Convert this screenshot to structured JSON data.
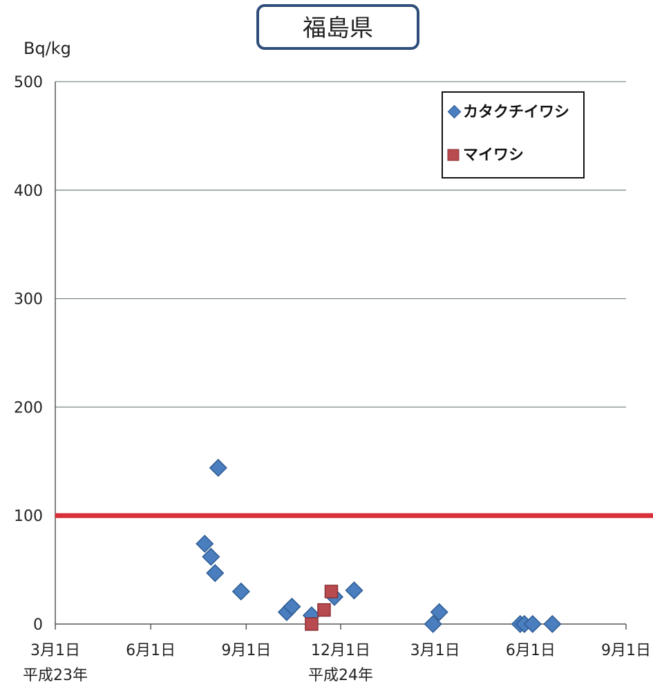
{
  "chart_data": {
    "type": "scatter",
    "title": "福島県",
    "ylabel": "Bq/kg",
    "xlabel": "",
    "ylim": [
      0,
      500
    ],
    "xlim": [
      "2011-03-01",
      "2012-09-01"
    ],
    "y_ticks": [
      "0",
      "100",
      "200",
      "300",
      "400",
      "500"
    ],
    "x_ticks": [
      {
        "date": "2011-03-01",
        "label": "3月1日"
      },
      {
        "date": "2011-06-01",
        "label": "6月1日"
      },
      {
        "date": "2011-09-01",
        "label": "9月1日"
      },
      {
        "date": "2011-12-01",
        "label": "12月1日"
      },
      {
        "date": "2012-03-01",
        "label": "3月1日"
      },
      {
        "date": "2012-06-01",
        "label": "6月1日"
      },
      {
        "date": "2012-09-01",
        "label": "9月1日"
      }
    ],
    "era_labels": [
      {
        "date": "2011-03-01",
        "label": "平成23年"
      },
      {
        "date": "2011-12-01",
        "label": "平成24年"
      }
    ],
    "grid": true,
    "legend_position": "top-right",
    "reference_line": {
      "y": 100,
      "color": "#d9303a"
    },
    "series": [
      {
        "name": "カタクチイワシ",
        "marker": "diamond",
        "color": "#4a7ebf",
        "points": [
          {
            "x": "2011-07-23",
            "y": 74
          },
          {
            "x": "2011-07-29",
            "y": 62
          },
          {
            "x": "2011-08-02",
            "y": 47
          },
          {
            "x": "2011-08-05",
            "y": 144
          },
          {
            "x": "2011-08-27",
            "y": 30
          },
          {
            "x": "2011-10-10",
            "y": 11
          },
          {
            "x": "2011-10-15",
            "y": 16
          },
          {
            "x": "2011-11-03",
            "y": 8
          },
          {
            "x": "2011-11-25",
            "y": 25
          },
          {
            "x": "2011-12-14",
            "y": 31
          },
          {
            "x": "2012-02-28",
            "y": 0
          },
          {
            "x": "2012-03-05",
            "y": 11
          },
          {
            "x": "2012-05-22",
            "y": 0
          },
          {
            "x": "2012-05-26",
            "y": 0
          },
          {
            "x": "2012-06-03",
            "y": 0
          },
          {
            "x": "2012-06-22",
            "y": 0
          }
        ]
      },
      {
        "name": "マイワシ",
        "marker": "square",
        "color": "#b84b4f",
        "points": [
          {
            "x": "2011-11-03",
            "y": 0
          },
          {
            "x": "2011-11-15",
            "y": 13
          },
          {
            "x": "2011-11-22",
            "y": 30
          }
        ]
      }
    ]
  }
}
